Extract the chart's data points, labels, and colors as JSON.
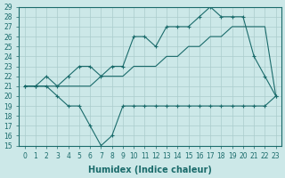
{
  "xlabel": "Humidex (Indice chaleur)",
  "bg_color": "#cce8e8",
  "line_color": "#1a6b6b",
  "grid_color": "#aacccc",
  "ylim": [
    15,
    29
  ],
  "xlim": [
    -0.5,
    23.5
  ],
  "yticks": [
    15,
    16,
    17,
    18,
    19,
    20,
    21,
    22,
    23,
    24,
    25,
    26,
    27,
    28,
    29
  ],
  "xticks": [
    0,
    1,
    2,
    3,
    4,
    5,
    6,
    7,
    8,
    9,
    10,
    11,
    12,
    13,
    14,
    15,
    16,
    17,
    18,
    19,
    20,
    21,
    22,
    23
  ],
  "series_zigzag_x": [
    0,
    1,
    2,
    3,
    4,
    5,
    6,
    7,
    8,
    9,
    10,
    11,
    12,
    13,
    14,
    15,
    16,
    17,
    18,
    19,
    20,
    21,
    22,
    23
  ],
  "series_zigzag_y": [
    21,
    21,
    21,
    20,
    19,
    19,
    17,
    15,
    16,
    19,
    19,
    19,
    19,
    19,
    19,
    19,
    19,
    19,
    19,
    19,
    19,
    19,
    19,
    20
  ],
  "series_straight_x": [
    0,
    1,
    2,
    3,
    4,
    5,
    6,
    7,
    8,
    9,
    10,
    11,
    12,
    13,
    14,
    15,
    16,
    17,
    18,
    19,
    20,
    21,
    22,
    23
  ],
  "series_straight_y": [
    21,
    21,
    21,
    21,
    21,
    21,
    21,
    22,
    22,
    22,
    23,
    23,
    23,
    24,
    24,
    25,
    25,
    26,
    26,
    27,
    27,
    27,
    27,
    20
  ],
  "series_peak_x": [
    0,
    1,
    2,
    3,
    4,
    5,
    6,
    7,
    8,
    9,
    10,
    11,
    12,
    13,
    14,
    15,
    16,
    17,
    18,
    19,
    20,
    21,
    22,
    23
  ],
  "series_peak_y": [
    21,
    21,
    22,
    21,
    22,
    23,
    23,
    22,
    23,
    23,
    26,
    26,
    25,
    27,
    27,
    27,
    28,
    29,
    28,
    28,
    28,
    24,
    22,
    20
  ]
}
